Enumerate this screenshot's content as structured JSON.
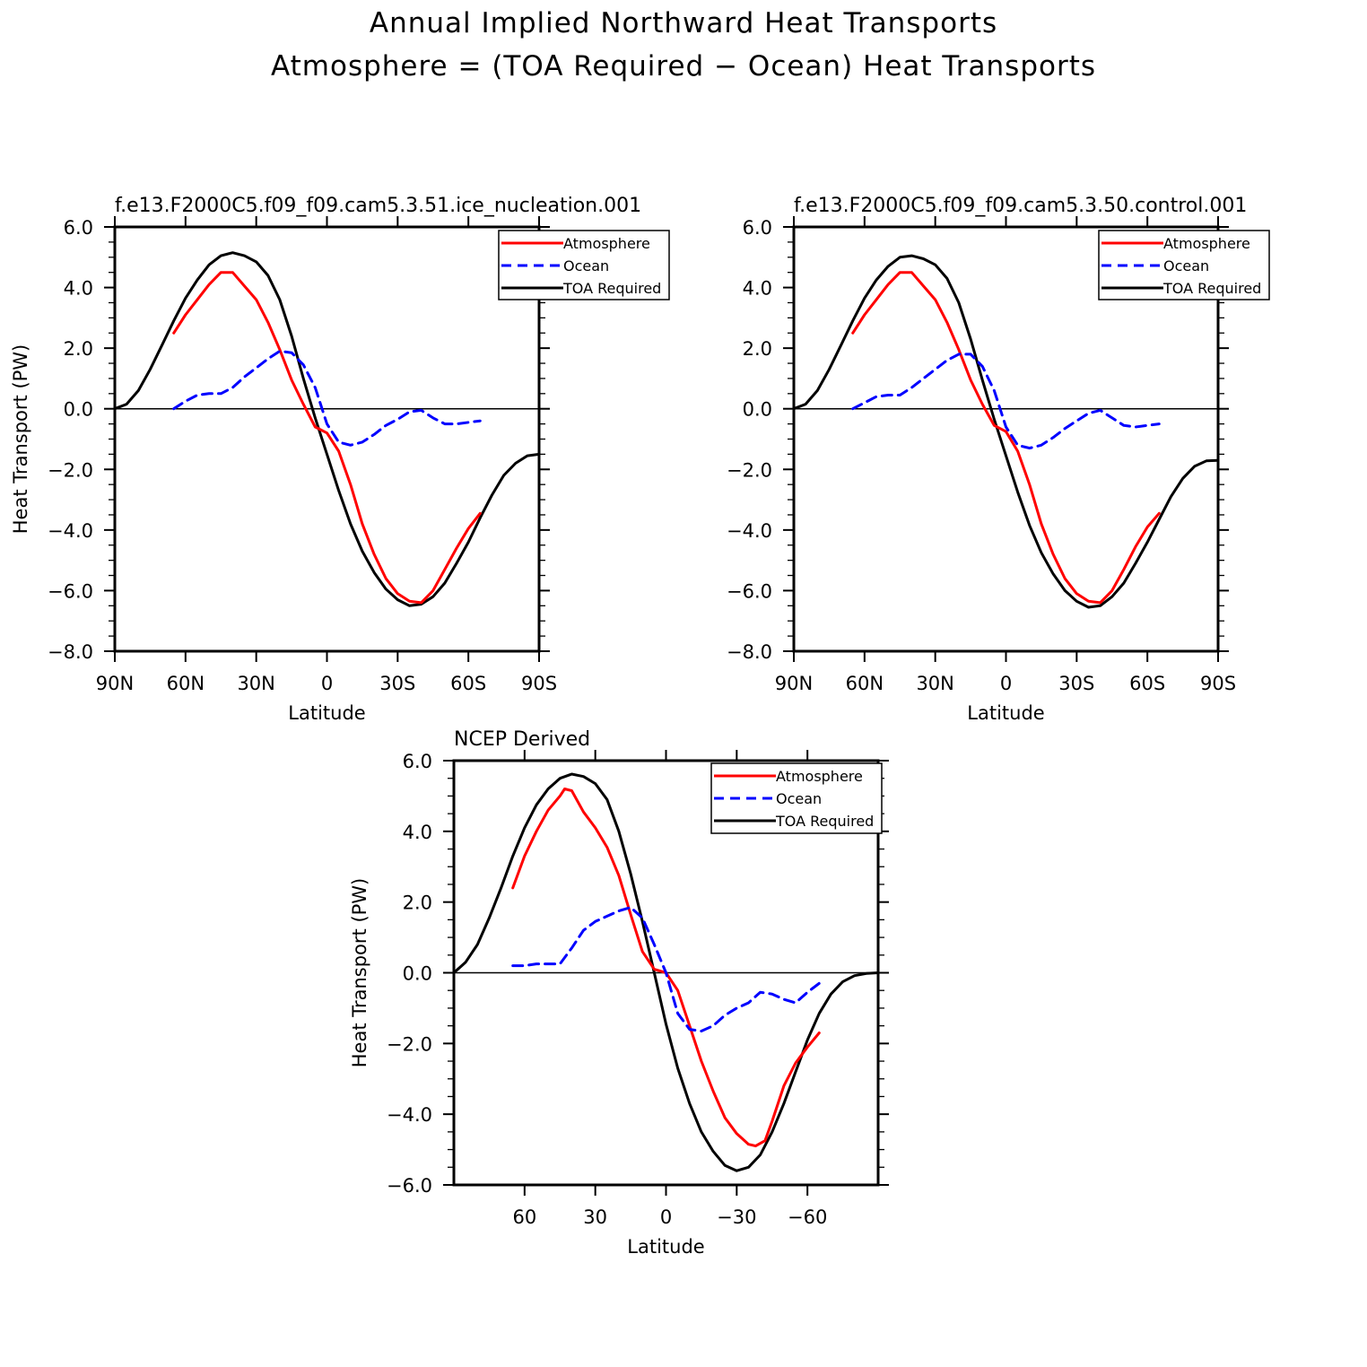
{
  "figure": {
    "title_line1": "Annual Implied Northward Heat Transports",
    "title_line2": "Atmosphere = (TOA Required − Ocean) Heat Transports"
  },
  "legend": {
    "atm": "Atmosphere",
    "ocn": "Ocean",
    "toa": "TOA Required"
  },
  "colors": {
    "atm": "#ff0000",
    "ocn": "#0000ff",
    "toa": "#000000"
  },
  "chart_data": [
    {
      "type": "line",
      "title": "f.e13.F2000C5.f09_f09.cam5.3.51.ice_nucleation.001",
      "xlabel": "Latitude",
      "ylabel": "Heat Transport (PW)",
      "xlim": [
        90,
        -90
      ],
      "ylim": [
        -8,
        6
      ],
      "xticks": [
        90,
        60,
        30,
        0,
        -30,
        -60,
        -90
      ],
      "xtick_labels": [
        "90N",
        "60N",
        "30N",
        "0",
        "30S",
        "60S",
        "90S"
      ],
      "yticks": [
        6,
        4,
        2,
        0,
        -2,
        -4,
        -6,
        -8
      ],
      "ytick_labels": [
        "6.0",
        "4.0",
        "2.0",
        "0.0",
        "−2.0",
        "−4.0",
        "−6.0",
        "−8.0"
      ],
      "series": [
        {
          "name": "TOA Required",
          "x": [
            90,
            85,
            80,
            75,
            70,
            65,
            60,
            55,
            50,
            45,
            40,
            35,
            30,
            25,
            20,
            15,
            10,
            5,
            0,
            -5,
            -10,
            -15,
            -20,
            -25,
            -30,
            -35,
            -40,
            -45,
            -50,
            -55,
            -60,
            -65,
            -70,
            -75,
            -80,
            -85,
            -90
          ],
          "y": [
            0,
            0.15,
            0.6,
            1.3,
            2.1,
            2.9,
            3.65,
            4.25,
            4.75,
            5.05,
            5.15,
            5.05,
            4.85,
            4.4,
            3.6,
            2.4,
            1.0,
            -0.3,
            -1.5,
            -2.7,
            -3.8,
            -4.7,
            -5.4,
            -5.95,
            -6.3,
            -6.5,
            -6.45,
            -6.2,
            -5.75,
            -5.1,
            -4.4,
            -3.6,
            -2.85,
            -2.2,
            -1.8,
            -1.55,
            -1.5
          ]
        },
        {
          "name": "Atmosphere",
          "x": [
            65,
            60,
            55,
            50,
            45,
            40,
            35,
            30,
            25,
            20,
            15,
            10,
            5,
            0,
            -5,
            -10,
            -15,
            -20,
            -25,
            -30,
            -35,
            -40,
            -45,
            -50,
            -55,
            -60,
            -65
          ],
          "y": [
            2.5,
            3.1,
            3.6,
            4.1,
            4.5,
            4.5,
            4.05,
            3.6,
            2.85,
            1.95,
            0.95,
            0.15,
            -0.6,
            -0.8,
            -1.4,
            -2.5,
            -3.8,
            -4.8,
            -5.6,
            -6.1,
            -6.35,
            -6.4,
            -6.0,
            -5.3,
            -4.6,
            -3.95,
            -3.45
          ]
        },
        {
          "name": "Ocean",
          "x": [
            65,
            60,
            55,
            50,
            45,
            40,
            35,
            30,
            25,
            20,
            15,
            10,
            5,
            0,
            -5,
            -10,
            -15,
            -20,
            -25,
            -30,
            -35,
            -40,
            -45,
            -50,
            -55,
            -60,
            -65
          ],
          "y": [
            0,
            0.25,
            0.45,
            0.5,
            0.5,
            0.7,
            1.05,
            1.35,
            1.65,
            1.9,
            1.85,
            1.45,
            0.7,
            -0.5,
            -1.1,
            -1.2,
            -1.1,
            -0.85,
            -0.55,
            -0.35,
            -0.1,
            -0.05,
            -0.3,
            -0.5,
            -0.5,
            -0.45,
            -0.4
          ]
        }
      ]
    },
    {
      "type": "line",
      "title": "f.e13.F2000C5.f09_f09.cam5.3.50.control.001",
      "xlabel": "Latitude",
      "ylabel": "",
      "xlim": [
        90,
        -90
      ],
      "ylim": [
        -8,
        6
      ],
      "xticks": [
        90,
        60,
        30,
        0,
        -30,
        -60,
        -90
      ],
      "xtick_labels": [
        "90N",
        "60N",
        "30N",
        "0",
        "30S",
        "60S",
        "90S"
      ],
      "yticks": [
        6,
        4,
        2,
        0,
        -2,
        -4,
        -6,
        -8
      ],
      "ytick_labels": [
        "6.0",
        "4.0",
        "2.0",
        "0.0",
        "−2.0",
        "−4.0",
        "−6.0",
        "−8.0"
      ],
      "series": [
        {
          "name": "TOA Required",
          "x": [
            90,
            85,
            80,
            75,
            70,
            65,
            60,
            55,
            50,
            45,
            40,
            35,
            30,
            25,
            20,
            15,
            10,
            5,
            0,
            -5,
            -10,
            -15,
            -20,
            -25,
            -30,
            -35,
            -40,
            -45,
            -50,
            -55,
            -60,
            -65,
            -70,
            -75,
            -80,
            -85,
            -90
          ],
          "y": [
            0,
            0.15,
            0.6,
            1.3,
            2.1,
            2.9,
            3.65,
            4.25,
            4.7,
            5.0,
            5.05,
            4.95,
            4.75,
            4.3,
            3.5,
            2.3,
            0.95,
            -0.35,
            -1.55,
            -2.75,
            -3.85,
            -4.75,
            -5.45,
            -6.0,
            -6.35,
            -6.55,
            -6.5,
            -6.2,
            -5.75,
            -5.1,
            -4.4,
            -3.65,
            -2.9,
            -2.3,
            -1.9,
            -1.72,
            -1.7
          ]
        },
        {
          "name": "Atmosphere",
          "x": [
            65,
            60,
            55,
            50,
            45,
            40,
            35,
            30,
            25,
            20,
            15,
            10,
            5,
            0,
            -5,
            -10,
            -15,
            -20,
            -25,
            -30,
            -35,
            -40,
            -45,
            -50,
            -55,
            -60,
            -65
          ],
          "y": [
            2.5,
            3.1,
            3.6,
            4.1,
            4.5,
            4.5,
            4.05,
            3.6,
            2.85,
            1.95,
            0.95,
            0.15,
            -0.55,
            -0.75,
            -1.4,
            -2.5,
            -3.8,
            -4.8,
            -5.6,
            -6.1,
            -6.35,
            -6.4,
            -6.0,
            -5.3,
            -4.55,
            -3.9,
            -3.45
          ]
        },
        {
          "name": "Ocean",
          "x": [
            65,
            60,
            55,
            50,
            45,
            40,
            35,
            30,
            25,
            20,
            15,
            10,
            5,
            0,
            -5,
            -10,
            -15,
            -20,
            -25,
            -30,
            -35,
            -40,
            -45,
            -50,
            -55,
            -60,
            -65
          ],
          "y": [
            0,
            0.2,
            0.4,
            0.45,
            0.45,
            0.7,
            1.0,
            1.3,
            1.6,
            1.8,
            1.8,
            1.4,
            0.6,
            -0.6,
            -1.2,
            -1.3,
            -1.2,
            -0.95,
            -0.65,
            -0.4,
            -0.15,
            -0.05,
            -0.3,
            -0.55,
            -0.6,
            -0.55,
            -0.5
          ]
        }
      ]
    },
    {
      "type": "line",
      "title": "NCEP Derived",
      "xlabel": "Latitude",
      "ylabel": "Heat Transport (PW)",
      "xlim": [
        90,
        -90
      ],
      "ylim": [
        -6,
        6
      ],
      "xticks": [
        60,
        30,
        0,
        -30,
        -60
      ],
      "xtick_labels": [
        "60",
        "30",
        "0",
        "−30",
        "−60"
      ],
      "yticks": [
        6,
        4,
        2,
        0,
        -2,
        -4,
        -6
      ],
      "ytick_labels": [
        "6.0",
        "4.0",
        "2.0",
        "0.0",
        "−2.0",
        "−4.0",
        "−6.0"
      ],
      "series": [
        {
          "name": "TOA Required",
          "x": [
            90,
            85,
            80,
            75,
            70,
            65,
            60,
            55,
            50,
            45,
            40,
            35,
            30,
            25,
            20,
            15,
            10,
            5,
            0,
            -5,
            -10,
            -15,
            -20,
            -25,
            -30,
            -35,
            -40,
            -45,
            -50,
            -55,
            -60,
            -65,
            -70,
            -75,
            -80,
            -85,
            -90
          ],
          "y": [
            0,
            0.3,
            0.8,
            1.55,
            2.4,
            3.3,
            4.1,
            4.75,
            5.2,
            5.5,
            5.62,
            5.55,
            5.35,
            4.9,
            4.0,
            2.8,
            1.45,
            0.0,
            -1.45,
            -2.7,
            -3.7,
            -4.5,
            -5.05,
            -5.45,
            -5.6,
            -5.5,
            -5.15,
            -4.5,
            -3.7,
            -2.8,
            -1.9,
            -1.15,
            -0.6,
            -0.25,
            -0.08,
            -0.02,
            0
          ]
        },
        {
          "name": "Atmosphere",
          "x": [
            65,
            60,
            55,
            50,
            45,
            43,
            40,
            35,
            30,
            25,
            20,
            15,
            10,
            5,
            0,
            -5,
            -10,
            -15,
            -20,
            -25,
            -30,
            -35,
            -38,
            -42,
            -45,
            -50,
            -55,
            -60,
            -65
          ],
          "y": [
            2.4,
            3.3,
            4.0,
            4.6,
            5.0,
            5.2,
            5.15,
            4.55,
            4.1,
            3.55,
            2.75,
            1.65,
            0.6,
            0.1,
            0.0,
            -0.5,
            -1.5,
            -2.5,
            -3.35,
            -4.1,
            -4.55,
            -4.85,
            -4.9,
            -4.75,
            -4.2,
            -3.2,
            -2.55,
            -2.1,
            -1.7
          ]
        },
        {
          "name": "Ocean",
          "x": [
            65,
            60,
            55,
            50,
            45,
            40,
            35,
            30,
            25,
            20,
            15,
            10,
            5,
            0,
            -5,
            -10,
            -15,
            -20,
            -25,
            -30,
            -35,
            -40,
            -45,
            -50,
            -55,
            -60,
            -65
          ],
          "y": [
            0.2,
            0.2,
            0.25,
            0.25,
            0.25,
            0.7,
            1.2,
            1.45,
            1.6,
            1.75,
            1.85,
            1.55,
            0.8,
            0.0,
            -1.15,
            -1.6,
            -1.65,
            -1.5,
            -1.2,
            -1.0,
            -0.85,
            -0.55,
            -0.6,
            -0.75,
            -0.85,
            -0.55,
            -0.3
          ]
        }
      ]
    }
  ]
}
